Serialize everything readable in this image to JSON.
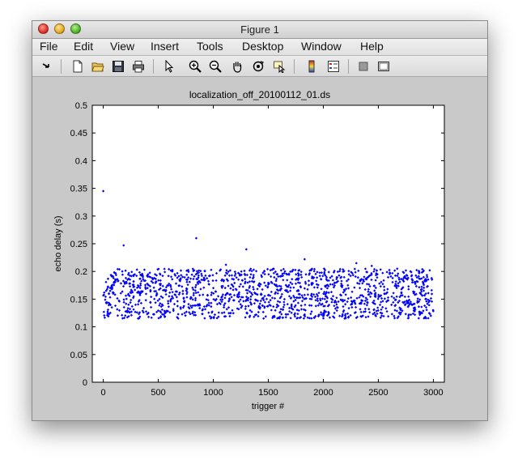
{
  "window": {
    "title": "Figure 1"
  },
  "menu": [
    "File",
    "Edit",
    "View",
    "Insert",
    "Tools",
    "Desktop",
    "Window",
    "Help"
  ],
  "toolbar": {
    "buttons": [
      "dock-arrow-icon",
      "new-figure-icon",
      "open-file-icon",
      "save-icon",
      "print-icon",
      "edit-plot-arrow-icon",
      "zoom-in-icon",
      "zoom-out-icon",
      "pan-hand-icon",
      "rotate-3d-icon",
      "data-cursor-icon",
      "colorbar-icon",
      "legend-icon",
      "hide-plot-tools-icon",
      "show-plot-tools-icon"
    ]
  },
  "chart_data": {
    "type": "scatter",
    "title": "localization_off_20100112_01.ds",
    "xlabel": "trigger #",
    "ylabel": "echo delay (s)",
    "xlim": [
      -100,
      3100
    ],
    "ylim": [
      0,
      0.5
    ],
    "xticks": [
      0,
      500,
      1000,
      1500,
      2000,
      2500,
      3000
    ],
    "yticks": [
      0,
      0.05,
      0.1,
      0.15,
      0.2,
      0.25,
      0.3,
      0.35,
      0.4,
      0.45,
      0.5
    ],
    "grid": false,
    "marker_color": "#0000ff",
    "series": [
      {
        "points_summary": "dense band of ~3000 points between y=0.115 and y=0.205 across x=0..3000",
        "band": {
          "x_start": 0,
          "x_end": 3000,
          "y_min": 0.115,
          "y_max": 0.205
        },
        "outliers": [
          {
            "x": 0,
            "y": 0.345
          },
          {
            "x": 185,
            "y": 0.247
          },
          {
            "x": 845,
            "y": 0.26
          },
          {
            "x": 1300,
            "y": 0.24
          },
          {
            "x": 1830,
            "y": 0.222
          },
          {
            "x": 1115,
            "y": 0.212
          },
          {
            "x": 2300,
            "y": 0.215
          },
          {
            "x": 2440,
            "y": 0.21
          }
        ]
      }
    ]
  }
}
